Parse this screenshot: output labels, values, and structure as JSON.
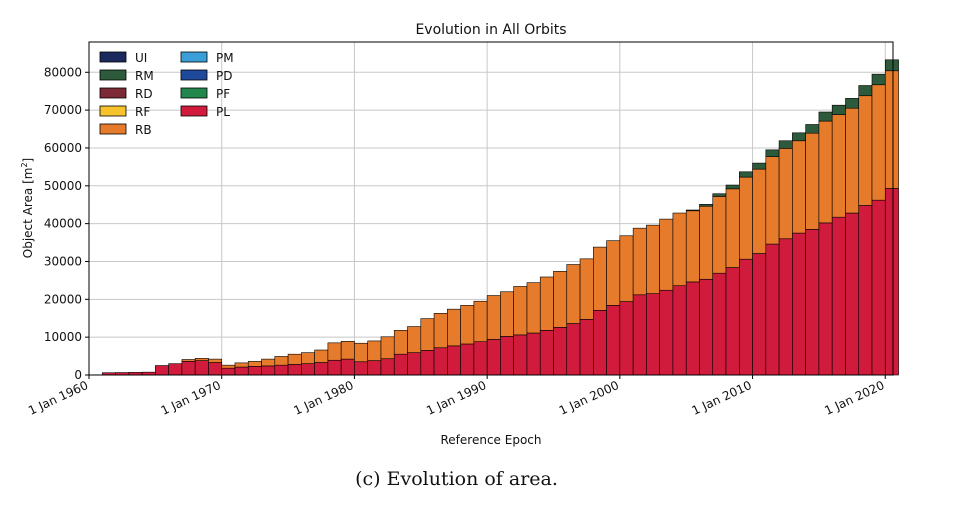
{
  "caption": "(c) Evolution of area.",
  "chart_data": {
    "type": "bar",
    "stacked": true,
    "title": "Evolution in All Orbits",
    "xlabel": "Reference Epoch",
    "ylabel": "Object Area [m²]",
    "ylabel_base": "Object Area [m",
    "ylabel_sup": "2",
    "ylabel_end": "]",
    "ylim": [
      0,
      88000
    ],
    "xlim": [
      "1960-01-01",
      "2020-08-01"
    ],
    "yticks": [
      0,
      10000,
      20000,
      30000,
      40000,
      50000,
      60000,
      70000,
      80000
    ],
    "xticks": [
      {
        "label": "1 Jan 1960",
        "date": "1960-01-01"
      },
      {
        "label": "1 Jan 1970",
        "date": "1970-01-01"
      },
      {
        "label": "1 Jan 1980",
        "date": "1980-01-01"
      },
      {
        "label": "1 Jan 1990",
        "date": "1990-01-01"
      },
      {
        "label": "1 Jan 2000",
        "date": "2000-01-01"
      },
      {
        "label": "1 Jan 2010",
        "date": "2010-01-01"
      },
      {
        "label": "1 Jan 2020",
        "date": "2020-01-01"
      }
    ],
    "grid": true,
    "legend_position": "top-left",
    "legend": [
      {
        "key": "UI",
        "label": "UI",
        "color": "#1a2a5e"
      },
      {
        "key": "RM",
        "label": "RM",
        "color": "#2e5a3c"
      },
      {
        "key": "RD",
        "label": "RD",
        "color": "#7d2a36"
      },
      {
        "key": "RF",
        "label": "RF",
        "color": "#f6c32c"
      },
      {
        "key": "RB",
        "label": "RB",
        "color": "#e67b2c"
      },
      {
        "key": "PM",
        "label": "PM",
        "color": "#3a9fd8"
      },
      {
        "key": "PD",
        "label": "PD",
        "color": "#1f4a9c"
      },
      {
        "key": "PF",
        "label": "PF",
        "color": "#21874c"
      },
      {
        "key": "PL",
        "label": "PL",
        "color": "#d01b3d"
      }
    ],
    "years": [
      1961,
      1962,
      1963,
      1964,
      1965,
      1966,
      1967,
      1968,
      1969,
      1970,
      1971,
      1972,
      1973,
      1974,
      1975,
      1976,
      1977,
      1978,
      1979,
      1980,
      1981,
      1982,
      1983,
      1984,
      1985,
      1986,
      1987,
      1988,
      1989,
      1990,
      1991,
      1992,
      1993,
      1994,
      1995,
      1996,
      1997,
      1998,
      1999,
      2000,
      2001,
      2002,
      2003,
      2004,
      2005,
      2006,
      2007,
      2008,
      2009,
      2010,
      2011,
      2012,
      2013,
      2014,
      2015,
      2016,
      2017,
      2018,
      2019,
      2020
    ],
    "series": [
      {
        "key": "PL",
        "values": [
          600,
          650,
          700,
          750,
          2500,
          3000,
          3600,
          3800,
          3300,
          1800,
          2100,
          2300,
          2400,
          2600,
          2800,
          3000,
          3300,
          3900,
          4200,
          3500,
          3800,
          4300,
          5500,
          5900,
          6500,
          7200,
          7700,
          8200,
          8800,
          9400,
          10200,
          10600,
          11100,
          11800,
          12600,
          13600,
          14700,
          17100,
          18400,
          19400,
          21200,
          21500,
          22400,
          23600,
          24600,
          25300,
          26900,
          28400,
          30600,
          32100,
          34600,
          36000,
          37500,
          38500,
          40200,
          41700,
          42800,
          44800,
          46200,
          49300
        ]
      },
      {
        "key": "RB",
        "values": [
          0,
          0,
          0,
          0,
          0,
          0,
          500,
          600,
          900,
          800,
          1100,
          1300,
          1800,
          2300,
          2700,
          2900,
          3300,
          4600,
          4700,
          4900,
          5200,
          5800,
          6300,
          6900,
          8400,
          9100,
          9700,
          10200,
          10700,
          11600,
          11800,
          12800,
          13300,
          14100,
          14800,
          15600,
          16000,
          16700,
          17100,
          17400,
          17600,
          18100,
          18800,
          19200,
          18800,
          19300,
          20300,
          20800,
          21700,
          22300,
          23100,
          23900,
          24400,
          25400,
          26900,
          27100,
          27700,
          29000,
          30500,
          31100
        ]
      },
      {
        "key": "RM",
        "values": [
          0,
          0,
          0,
          0,
          0,
          0,
          0,
          0,
          0,
          0,
          0,
          0,
          0,
          0,
          0,
          0,
          0,
          0,
          0,
          0,
          0,
          0,
          0,
          0,
          0,
          0,
          0,
          0,
          0,
          0,
          0,
          0,
          0,
          0,
          0,
          0,
          0,
          0,
          0,
          0,
          0,
          0,
          0,
          0,
          200,
          500,
          700,
          1000,
          1400,
          1600,
          1800,
          2000,
          2100,
          2300,
          2400,
          2500,
          2600,
          2700,
          2800,
          2900
        ]
      }
    ]
  }
}
